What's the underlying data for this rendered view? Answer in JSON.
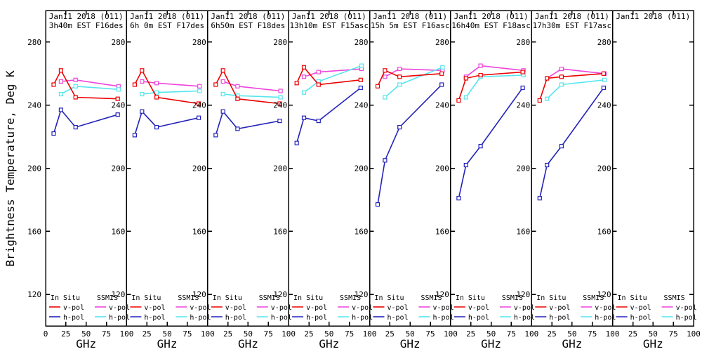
{
  "figure": {
    "background": "#ffffff",
    "axis_color": "#000000"
  },
  "legend": {
    "groups": [
      {
        "header": "In Situ",
        "entries": [
          {
            "label": "v-pol",
            "series": "in_situ_v_pol"
          },
          {
            "label": "h-pol",
            "series": "in_situ_h_pol"
          }
        ]
      },
      {
        "header": "SSMIS",
        "entries": [
          {
            "label": "v-pol",
            "series": "ssmis_v_pol"
          },
          {
            "label": "h-pol",
            "series": "ssmis_h_pol"
          }
        ]
      }
    ]
  },
  "chart_data": {
    "type": "line",
    "x_axis": {
      "label": "GHz",
      "range": [
        0,
        100
      ],
      "ticks": [
        0,
        25,
        50,
        75,
        100
      ]
    },
    "y_axis": {
      "label": "Brightness Temperature, Deg K",
      "range": [
        100,
        300
      ],
      "ticks": [
        120,
        160,
        200,
        240,
        280
      ]
    },
    "series_meta": {
      "in_situ_v_pol": {
        "name": "In Situ v-pol",
        "color": "#ee0000",
        "x_ghz": [
          10,
          19,
          37,
          89
        ]
      },
      "in_situ_h_pol": {
        "name": "In Situ h-pol",
        "color": "#2323bb",
        "x_ghz": [
          10,
          19,
          37,
          89
        ]
      },
      "ssmis_v_pol": {
        "name": "SSMIS v-pol",
        "color": "#ee44dd",
        "x_ghz": [
          19,
          37,
          90
        ]
      },
      "ssmis_h_pol": {
        "name": "SSMIS h-pol",
        "color": "#55e6ee",
        "x_ghz": [
          19,
          37,
          90
        ]
      }
    },
    "panels": [
      {
        "title": "Jan11 2018 (011)",
        "subtitle": "3h40m EST F16des",
        "in_situ_v_pol": [
          253,
          262,
          245,
          244
        ],
        "in_situ_h_pol": [
          222,
          237,
          226,
          234
        ],
        "ssmis_v_pol": [
          255,
          256,
          252
        ],
        "ssmis_h_pol": [
          247,
          252,
          250
        ]
      },
      {
        "title": "Jan11 2018 (011)",
        "subtitle": "6h 0m EST F17des",
        "in_situ_v_pol": [
          253,
          262,
          245,
          241
        ],
        "in_situ_h_pol": [
          221,
          236,
          226,
          232
        ],
        "ssmis_v_pol": [
          255,
          254,
          252
        ],
        "ssmis_h_pol": [
          247,
          248,
          249
        ]
      },
      {
        "title": "Jan11 2018 (011)",
        "subtitle": "6h50m EST F18des",
        "in_situ_v_pol": [
          253,
          262,
          244,
          241
        ],
        "in_situ_h_pol": [
          221,
          236,
          225,
          230
        ],
        "ssmis_v_pol": [
          255,
          252,
          249
        ],
        "ssmis_h_pol": [
          247,
          246,
          245
        ]
      },
      {
        "title": "Jan11 2018 (011)",
        "subtitle": "13h10m EST F15asc",
        "in_situ_v_pol": [
          254,
          264,
          253,
          256
        ],
        "in_situ_h_pol": [
          216,
          232,
          230,
          251
        ],
        "ssmis_v_pol": [
          258,
          261,
          263
        ],
        "ssmis_h_pol": [
          248,
          255,
          265
        ]
      },
      {
        "title": "Jan11 2018 (011)",
        "subtitle": "15h 5m EST F16asc",
        "in_situ_v_pol": [
          252,
          262,
          258,
          260
        ],
        "in_situ_h_pol": [
          177,
          205,
          226,
          253
        ],
        "ssmis_v_pol": [
          258,
          263,
          262
        ],
        "ssmis_h_pol": [
          245,
          253,
          264
        ]
      },
      {
        "title": "Jan11 2018 (011)",
        "subtitle": "16h40m EST F18asc",
        "in_situ_v_pol": [
          243,
          257,
          259,
          261
        ],
        "in_situ_h_pol": [
          181,
          202,
          214,
          251
        ],
        "ssmis_v_pol": [
          258,
          265,
          262
        ],
        "ssmis_h_pol": [
          245,
          258,
          259
        ]
      },
      {
        "title": "Jan11 2018 (011)",
        "subtitle": "17h30m EST F17asc",
        "in_situ_v_pol": [
          243,
          257,
          258,
          260
        ],
        "in_situ_h_pol": [
          181,
          202,
          214,
          251
        ],
        "ssmis_v_pol": [
          257,
          263,
          260
        ],
        "ssmis_h_pol": [
          244,
          253,
          256
        ]
      },
      {
        "title": "Jan11 2018 (011)",
        "subtitle": ""
      }
    ]
  }
}
